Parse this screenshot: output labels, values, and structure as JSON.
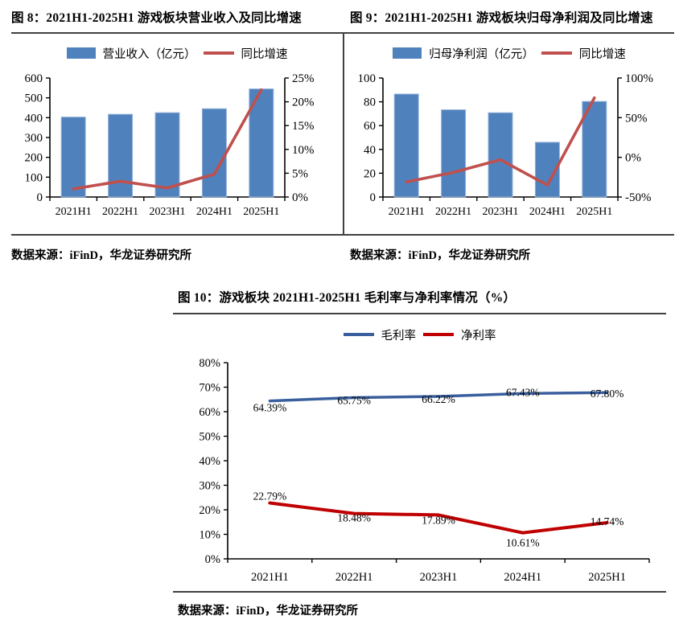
{
  "figures": [
    {
      "title": "图 8：2021H1-2025H1 游戏板块营业收入及同比增速",
      "source": "数据来源：iFinD，华龙证券研究所"
    },
    {
      "title": "图 9：2021H1-2025H1 游戏板块归母净利润及同比增速",
      "source": "数据来源：iFinD，华龙证券研究所"
    },
    {
      "title": "图 10：游戏板块 2021H1-2025H1 毛利率与净利率情况（%）",
      "source": "数据来源：iFinD，华龙证券研究所"
    }
  ],
  "chart_data": [
    {
      "type": "bar+line",
      "categories": [
        "2021H1",
        "2022H1",
        "2023H1",
        "2024H1",
        "2025H1"
      ],
      "series": [
        {
          "name": "营业收入（亿元）",
          "type": "bar",
          "axis": "left",
          "color": "#4F81BD",
          "values": [
            403,
            417,
            425,
            445,
            545
          ]
        },
        {
          "name": "同比增速",
          "type": "line",
          "axis": "right",
          "color": "#C0504D",
          "values": [
            1.7,
            3.3,
            1.9,
            4.8,
            22.5
          ]
        }
      ],
      "left_axis": {
        "min": 0,
        "max": 600,
        "ticks": [
          "600",
          "500",
          "400",
          "300",
          "200",
          "100",
          "0"
        ]
      },
      "right_axis": {
        "min": 0,
        "max": 25,
        "ticks": [
          "25%",
          "20%",
          "15%",
          "10%",
          "5%",
          "0%"
        ]
      },
      "legend_position": "top",
      "grid": false
    },
    {
      "type": "bar+line",
      "categories": [
        "2021H1",
        "2022H1",
        "2023H1",
        "2024H1",
        "2025H1"
      ],
      "series": [
        {
          "name": "归母净利润（亿元）",
          "type": "bar",
          "axis": "left",
          "color": "#4F81BD",
          "values": [
            86.5,
            73.3,
            70.8,
            46.0,
            80.3
          ]
        },
        {
          "name": "同比增速",
          "type": "line",
          "axis": "right",
          "color": "#C0504D",
          "values": [
            -31,
            -19,
            -3,
            -35,
            75
          ]
        }
      ],
      "left_axis": {
        "min": 0,
        "max": 100,
        "ticks": [
          "100",
          "80",
          "60",
          "40",
          "20",
          "0"
        ]
      },
      "right_axis": {
        "min": -50,
        "max": 100,
        "ticks": [
          "100%",
          "50%",
          "0%",
          "-50%"
        ]
      },
      "legend_position": "top",
      "grid": false
    },
    {
      "type": "line",
      "categories": [
        "2021H1",
        "2022H1",
        "2023H1",
        "2024H1",
        "2025H1"
      ],
      "series": [
        {
          "name": "毛利率",
          "color": "#3A5F9E",
          "values": [
            64.39,
            65.75,
            66.22,
            67.43,
            67.8
          ],
          "labels": [
            "64.39%",
            "65.75%",
            "66.22%",
            "67.43%",
            "67.80%"
          ]
        },
        {
          "name": "净利率",
          "color": "#C00000",
          "values": [
            22.79,
            18.48,
            17.89,
            10.61,
            14.74
          ],
          "labels": [
            "22.79%",
            "18.48%",
            "17.89%",
            "10.61%",
            "14.74%"
          ]
        }
      ],
      "left_axis": {
        "min": 0,
        "max": 80,
        "ticks": [
          "80%",
          "70%",
          "60%",
          "50%",
          "40%",
          "30%",
          "20%",
          "10%",
          "0%"
        ]
      },
      "legend_position": "top",
      "grid": false
    }
  ]
}
